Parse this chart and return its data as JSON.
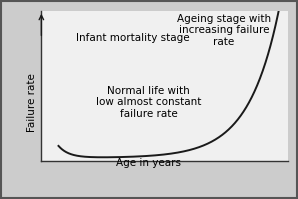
{
  "title": "",
  "xlabel": "Age in years",
  "ylabel": "Failure rate",
  "background_color": "#cccccc",
  "plot_bg_color": "#f0f0f0",
  "curve_color": "#1a1a1a",
  "curve_linewidth": 1.4,
  "text_infant": "Infant mortality stage",
  "text_normal": "Normal life with\nlow almost constant\nfailure rate",
  "text_ageing": "Ageing stage with\nincreasing failure\nrate",
  "text_fontsize": 7.5,
  "xlabel_fontsize": 7.5,
  "ylabel_fontsize": 7.5,
  "arrow_color": "#1a1a1a",
  "border_color": "#555555",
  "spine_color": "#333333"
}
